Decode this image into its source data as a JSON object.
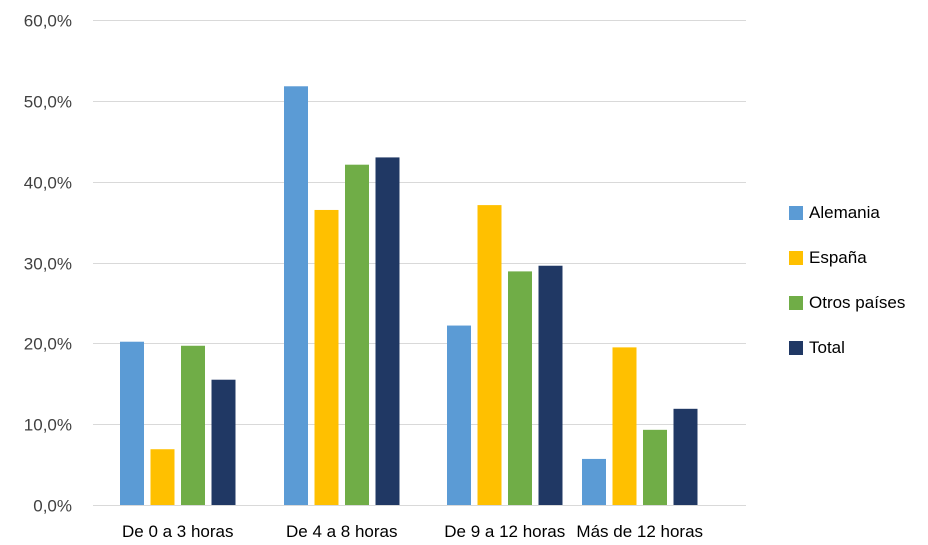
{
  "chart_data": {
    "type": "bar",
    "title": "",
    "xlabel": "",
    "ylabel": "",
    "categories": [
      "De 0 a 3 horas",
      "De 4 a 8 horas",
      "De 9 a 12 horas",
      "Más de 12 horas"
    ],
    "series": [
      {
        "name": "Alemania",
        "color": "#5b9bd5",
        "values": [
          20.2,
          51.8,
          22.2,
          5.7
        ]
      },
      {
        "name": "España",
        "color": "#ffc000",
        "values": [
          6.9,
          36.5,
          37.1,
          19.5
        ]
      },
      {
        "name": "Otros países",
        "color": "#70ad47",
        "values": [
          19.7,
          42.1,
          28.9,
          9.3
        ]
      },
      {
        "name": "Total",
        "color": "#203864",
        "values": [
          15.5,
          43.0,
          29.6,
          11.9
        ]
      }
    ],
    "ylim": [
      0,
      60
    ],
    "yticks": [
      0,
      10,
      20,
      30,
      40,
      50,
      60
    ],
    "ytick_labels": [
      "0,0%",
      "10,0%",
      "20,0%",
      "30,0%",
      "40,0%",
      "50,0%",
      "60,0%"
    ],
    "grid": true,
    "legend_position": "right"
  }
}
